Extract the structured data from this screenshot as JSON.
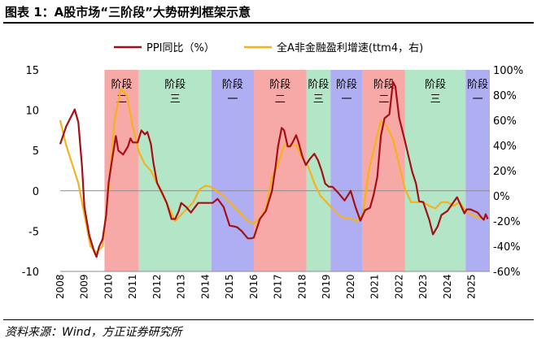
{
  "header": {
    "title": "图表 1：A股市场“三阶段”大势研判框架示意"
  },
  "footer": {
    "source": "资料来源：Wind，方正证券研究所"
  },
  "colors": {
    "ppi": "#A50F15",
    "profit": "#F5B21A",
    "stage_red": "#F7A9A8",
    "stage_green": "#B3E6C7",
    "stage_blue": "#B0AEF2"
  },
  "chart_data": {
    "type": "line",
    "title": "",
    "x_ticks": [
      "2008",
      "2009",
      "2010",
      "2011",
      "2012",
      "2013",
      "2014",
      "2015",
      "2016",
      "2017",
      "2018",
      "2019",
      "2020",
      "2021",
      "2022",
      "2023",
      "2024",
      "2025"
    ],
    "y_left": {
      "min": -10,
      "max": 15,
      "ticks": [
        "15",
        "10",
        "5",
        "0",
        "-5",
        "-10"
      ],
      "tick_values": [
        15,
        10,
        5,
        0,
        -5,
        -10
      ]
    },
    "y_right": {
      "min": -60,
      "max": 100,
      "ticks": [
        "100%",
        "80%",
        "60%",
        "40%",
        "20%",
        "0%",
        "-20%",
        "-40%",
        "-60%"
      ],
      "tick_values": [
        100,
        80,
        60,
        40,
        20,
        0,
        -20,
        -40,
        -60
      ]
    },
    "legend": {
      "position": "top",
      "ppi_label": "PPI同比（%）",
      "profit_label": "全A非金融盈利增速(ttm4，右)"
    },
    "stages": [
      {
        "start": 2009.83,
        "end": 2011.25,
        "label_top": "阶段",
        "label_bottom": "二",
        "color": "red"
      },
      {
        "start": 2011.25,
        "end": 2014.25,
        "label_top": "阶段",
        "label_bottom": "三",
        "color": "green"
      },
      {
        "start": 2014.25,
        "end": 2016.0,
        "label_top": "阶段",
        "label_bottom": "一",
        "color": "blue"
      },
      {
        "start": 2016.0,
        "end": 2018.17,
        "label_top": "阶段",
        "label_bottom": "二",
        "color": "red"
      },
      {
        "start": 2018.17,
        "end": 2019.17,
        "label_top": "阶段",
        "label_bottom": "三",
        "color": "green"
      },
      {
        "start": 2019.17,
        "end": 2020.5,
        "label_top": "阶段",
        "label_bottom": "一",
        "color": "blue"
      },
      {
        "start": 2020.5,
        "end": 2022.25,
        "label_top": "阶段",
        "label_bottom": "二",
        "color": "red"
      },
      {
        "start": 2022.25,
        "end": 2024.75,
        "label_top": "阶段",
        "label_bottom": "三",
        "color": "green"
      },
      {
        "start": 2024.75,
        "end": 2025.75,
        "label_top": "阶段",
        "label_bottom": "一",
        "color": "blue"
      }
    ],
    "series": [
      {
        "name": "PPI同比（%）",
        "axis": "left",
        "points": [
          [
            2008.0,
            5.8
          ],
          [
            2008.25,
            8.0
          ],
          [
            2008.5,
            9.5
          ],
          [
            2008.6,
            10.1
          ],
          [
            2008.75,
            8.5
          ],
          [
            2008.9,
            3.0
          ],
          [
            2009.0,
            -2.0
          ],
          [
            2009.2,
            -5.5
          ],
          [
            2009.4,
            -7.5
          ],
          [
            2009.5,
            -8.2
          ],
          [
            2009.6,
            -7.0
          ],
          [
            2009.75,
            -6.0
          ],
          [
            2009.9,
            -3.0
          ],
          [
            2010.0,
            1.0
          ],
          [
            2010.15,
            4.0
          ],
          [
            2010.3,
            6.8
          ],
          [
            2010.4,
            5.0
          ],
          [
            2010.6,
            4.5
          ],
          [
            2010.8,
            5.5
          ],
          [
            2010.9,
            6.5
          ],
          [
            2011.0,
            6.0
          ],
          [
            2011.2,
            6.0
          ],
          [
            2011.35,
            7.5
          ],
          [
            2011.5,
            7.0
          ],
          [
            2011.6,
            7.3
          ],
          [
            2011.75,
            5.8
          ],
          [
            2011.85,
            3.5
          ],
          [
            2012.0,
            1.0
          ],
          [
            2012.25,
            -0.5
          ],
          [
            2012.4,
            -1.5
          ],
          [
            2012.6,
            -3.5
          ],
          [
            2012.75,
            -3.5
          ],
          [
            2012.9,
            -2.5
          ],
          [
            2013.0,
            -1.5
          ],
          [
            2013.2,
            -2.0
          ],
          [
            2013.4,
            -2.7
          ],
          [
            2013.5,
            -2.3
          ],
          [
            2013.7,
            -1.5
          ],
          [
            2013.8,
            -1.5
          ],
          [
            2014.0,
            -1.5
          ],
          [
            2014.3,
            -1.5
          ],
          [
            2014.5,
            -1.0
          ],
          [
            2014.75,
            -2.0
          ],
          [
            2015.0,
            -4.3
          ],
          [
            2015.3,
            -4.5
          ],
          [
            2015.5,
            -5.0
          ],
          [
            2015.75,
            -5.9
          ],
          [
            2015.9,
            -5.9
          ],
          [
            2016.0,
            -5.8
          ],
          [
            2016.25,
            -3.5
          ],
          [
            2016.5,
            -2.5
          ],
          [
            2016.75,
            0.0
          ],
          [
            2016.9,
            3.0
          ],
          [
            2017.0,
            5.5
          ],
          [
            2017.15,
            7.8
          ],
          [
            2017.25,
            7.5
          ],
          [
            2017.4,
            5.5
          ],
          [
            2017.5,
            5.5
          ],
          [
            2017.6,
            6.0
          ],
          [
            2017.75,
            6.9
          ],
          [
            2017.85,
            6.0
          ],
          [
            2018.0,
            4.3
          ],
          [
            2018.15,
            3.2
          ],
          [
            2018.3,
            3.9
          ],
          [
            2018.5,
            4.6
          ],
          [
            2018.65,
            3.8
          ],
          [
            2018.8,
            2.5
          ],
          [
            2018.95,
            0.9
          ],
          [
            2019.1,
            0.5
          ],
          [
            2019.25,
            0.5
          ],
          [
            2019.5,
            -0.3
          ],
          [
            2019.75,
            -1.2
          ],
          [
            2019.9,
            -0.5
          ],
          [
            2020.0,
            0.0
          ],
          [
            2020.2,
            -2.0
          ],
          [
            2020.4,
            -3.7
          ],
          [
            2020.6,
            -2.4
          ],
          [
            2020.8,
            -2.1
          ],
          [
            2020.95,
            -0.5
          ],
          [
            2021.1,
            1.7
          ],
          [
            2021.25,
            6.8
          ],
          [
            2021.4,
            9.0
          ],
          [
            2021.6,
            9.5
          ],
          [
            2021.75,
            13.5
          ],
          [
            2021.85,
            12.9
          ],
          [
            2022.0,
            9.1
          ],
          [
            2022.25,
            6.1
          ],
          [
            2022.4,
            4.2
          ],
          [
            2022.55,
            2.3
          ],
          [
            2022.7,
            0.9
          ],
          [
            2022.83,
            -1.3
          ],
          [
            2023.0,
            -1.4
          ],
          [
            2023.25,
            -3.6
          ],
          [
            2023.4,
            -5.4
          ],
          [
            2023.6,
            -4.4
          ],
          [
            2023.75,
            -3.0
          ],
          [
            2023.9,
            -2.7
          ],
          [
            2024.0,
            -2.5
          ],
          [
            2024.25,
            -1.4
          ],
          [
            2024.4,
            -0.8
          ],
          [
            2024.55,
            -1.8
          ],
          [
            2024.7,
            -2.8
          ],
          [
            2024.8,
            -2.3
          ],
          [
            2024.95,
            -2.3
          ],
          [
            2025.1,
            -2.5
          ],
          [
            2025.25,
            -2.7
          ],
          [
            2025.4,
            -3.3
          ],
          [
            2025.5,
            -3.6
          ],
          [
            2025.58,
            -2.9
          ],
          [
            2025.67,
            -3.5
          ]
        ]
      },
      {
        "name": "全A非金融盈利增速(ttm4，右)",
        "axis": "right",
        "points": [
          [
            2008.0,
            60
          ],
          [
            2008.25,
            40
          ],
          [
            2008.5,
            25
          ],
          [
            2008.75,
            10
          ],
          [
            2009.0,
            -15
          ],
          [
            2009.25,
            -40
          ],
          [
            2009.5,
            -45
          ],
          [
            2009.75,
            -40
          ],
          [
            2010.0,
            5
          ],
          [
            2010.25,
            60
          ],
          [
            2010.5,
            85
          ],
          [
            2010.75,
            80
          ],
          [
            2011.0,
            55
          ],
          [
            2011.25,
            35
          ],
          [
            2011.5,
            25
          ],
          [
            2011.75,
            20
          ],
          [
            2012.0,
            10
          ],
          [
            2012.25,
            0
          ],
          [
            2012.5,
            -10
          ],
          [
            2012.75,
            -20
          ],
          [
            2013.0,
            -15
          ],
          [
            2013.25,
            -10
          ],
          [
            2013.5,
            -5
          ],
          [
            2013.75,
            5
          ],
          [
            2014.0,
            8
          ],
          [
            2014.25,
            7
          ],
          [
            2014.5,
            3
          ],
          [
            2014.75,
            0
          ],
          [
            2015.0,
            -5
          ],
          [
            2015.25,
            -10
          ],
          [
            2015.5,
            -15
          ],
          [
            2015.75,
            -20
          ],
          [
            2016.0,
            -22
          ],
          [
            2016.25,
            -18
          ],
          [
            2016.5,
            -10
          ],
          [
            2016.75,
            15
          ],
          [
            2017.0,
            25
          ],
          [
            2017.25,
            40
          ],
          [
            2017.5,
            40
          ],
          [
            2017.75,
            40
          ],
          [
            2018.0,
            30
          ],
          [
            2018.25,
            23
          ],
          [
            2018.5,
            10
          ],
          [
            2018.75,
            0
          ],
          [
            2019.0,
            -5
          ],
          [
            2019.25,
            -10
          ],
          [
            2019.5,
            -15
          ],
          [
            2019.75,
            -18
          ],
          [
            2020.0,
            -18
          ],
          [
            2020.25,
            -20
          ],
          [
            2020.5,
            -15
          ],
          [
            2020.75,
            20
          ],
          [
            2021.0,
            40
          ],
          [
            2021.25,
            60
          ],
          [
            2021.5,
            55
          ],
          [
            2021.75,
            45
          ],
          [
            2022.0,
            25
          ],
          [
            2022.25,
            5
          ],
          [
            2022.5,
            -5
          ],
          [
            2022.75,
            -5
          ],
          [
            2023.0,
            -5
          ],
          [
            2023.25,
            -8
          ],
          [
            2023.5,
            -10
          ],
          [
            2023.75,
            -5
          ],
          [
            2024.0,
            -5
          ],
          [
            2024.25,
            -8
          ],
          [
            2024.5,
            -5
          ],
          [
            2024.75,
            -12
          ],
          [
            2025.0,
            -15
          ],
          [
            2025.25,
            -17
          ],
          [
            2025.5,
            -18
          ]
        ]
      }
    ]
  }
}
